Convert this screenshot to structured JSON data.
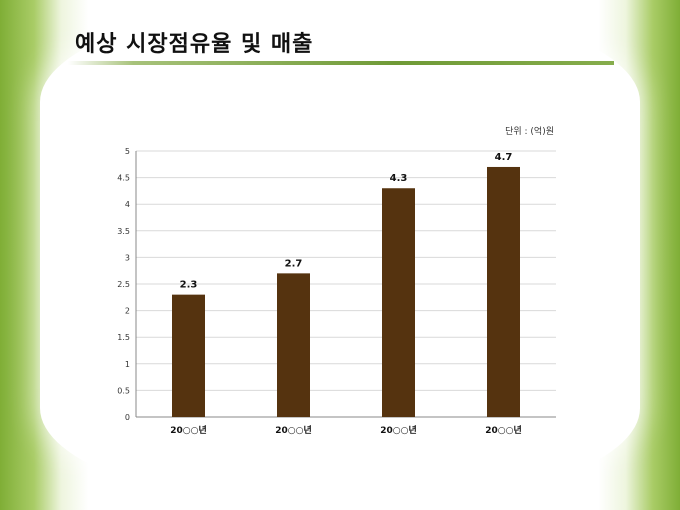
{
  "page": {
    "title": "예상 시장점유율 및 매출"
  },
  "colors": {
    "bar": "#55330f",
    "accent": "#6f9a36"
  },
  "chart_data": {
    "type": "bar",
    "unit_note": "단위 : (억)원",
    "categories": [
      "20○○년",
      "20○○년",
      "20○○년",
      "20○○년"
    ],
    "values": [
      2.3,
      2.7,
      4.3,
      4.7
    ],
    "value_labels": [
      "2.3",
      "2.7",
      "4.3",
      "4.7"
    ],
    "ylim": [
      0,
      5
    ],
    "yticks": [
      "0",
      "0.5",
      "1",
      "1.5",
      "2",
      "2.5",
      "3",
      "3.5",
      "4",
      "4.5",
      "5"
    ],
    "grid": true,
    "legend": "none"
  }
}
